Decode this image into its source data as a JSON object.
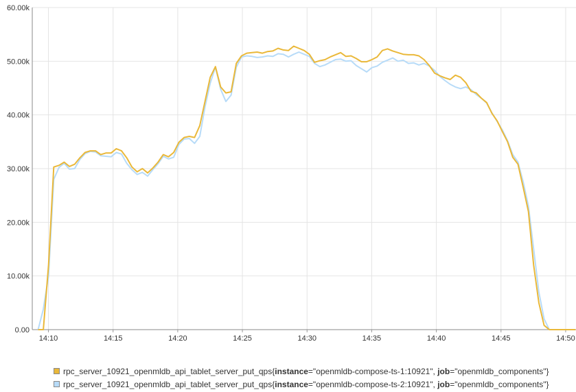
{
  "chart_data": {
    "type": "line",
    "x_ticks": [
      "14:10",
      "14:15",
      "14:20",
      "14:25",
      "14:30",
      "14:35",
      "14:40",
      "14:45",
      "14:50"
    ],
    "y_ticks": [
      "0.00",
      "10.00k",
      "20.00k",
      "30.00k",
      "40.00k",
      "50.00k",
      "60.00k"
    ],
    "xlim": [
      "14:08.75",
      "14:50.80"
    ],
    "ylim": [
      0,
      60000
    ],
    "grid": true,
    "legend_position": "bottom-left",
    "x_minutes_labels": "time of day (HH:MM) from 14:08:45 to 14:50:48, sampled every ~18s",
    "series": [
      {
        "name": "rpc_server_10921_openmldb_api_tablet_server_put_qps",
        "label_prefix": "{",
        "instance_key": "instance",
        "instance_value": "=\"openmldb-compose-ts-1:10921\"",
        "job_key": "job",
        "job_value": "=\"openmldb_components\"}",
        "color": "#eab839",
        "values": [
          0,
          0,
          12000,
          30300,
          30600,
          31200,
          30400,
          30800,
          32000,
          33000,
          33300,
          33300,
          32600,
          32900,
          32900,
          33700,
          33300,
          32000,
          30300,
          29400,
          30000,
          29200,
          30100,
          31200,
          32600,
          32200,
          33000,
          34900,
          35800,
          36000,
          35800,
          38000,
          42500,
          47000,
          49000,
          45200,
          44100,
          44300,
          49600,
          51000,
          51500,
          51600,
          51700,
          51500,
          51800,
          51900,
          52400,
          52100,
          52000,
          52800,
          52400,
          52000,
          51300,
          49800,
          50100,
          50300,
          50800,
          51200,
          51600,
          50900,
          51000,
          50500,
          49900,
          49900,
          50300,
          50800,
          52000,
          52300,
          51900,
          51600,
          51300,
          51200,
          51200,
          51000,
          50300,
          49200,
          47800,
          47300,
          46900,
          46600,
          47400,
          47000,
          46000,
          44400,
          44100,
          43100,
          42300,
          40300,
          38900,
          36900,
          35000,
          32100,
          30800,
          26500,
          22000,
          12000,
          5000,
          800,
          0,
          0,
          0,
          0,
          0,
          0
        ]
      },
      {
        "name": "rpc_server_10921_openmldb_api_tablet_server_put_qps",
        "label_prefix": "{",
        "instance_key": "instance",
        "instance_value": "=\"openmldb-compose-ts-2:10921\"",
        "job_key": "job",
        "job_value": "=\"openmldb_components\"}",
        "color": "#b7dbf8",
        "values": [
          0,
          3800,
          10000,
          28000,
          30200,
          31000,
          29900,
          30000,
          31700,
          32800,
          33200,
          33100,
          32400,
          32300,
          32200,
          33000,
          32700,
          31000,
          29800,
          28900,
          29300,
          28600,
          29800,
          30900,
          32300,
          31800,
          32100,
          34500,
          35500,
          35600,
          34700,
          36000,
          41500,
          45900,
          48900,
          44800,
          42500,
          43700,
          48900,
          50800,
          51000,
          50900,
          50700,
          50800,
          51000,
          50900,
          51400,
          51300,
          50800,
          51300,
          51700,
          51300,
          50900,
          49600,
          49000,
          49300,
          49800,
          50300,
          50400,
          50000,
          50100,
          49200,
          48600,
          48000,
          48800,
          49100,
          49800,
          50200,
          50600,
          50000,
          50200,
          49600,
          49700,
          49300,
          49600,
          49100,
          48300,
          47200,
          46400,
          45700,
          45200,
          44900,
          45200,
          44700,
          43800,
          43100,
          42200,
          40400,
          38800,
          37200,
          35200,
          32600,
          31200,
          27500,
          23000,
          15000,
          7000,
          2000,
          0,
          0,
          0,
          0,
          0,
          0
        ]
      }
    ]
  }
}
